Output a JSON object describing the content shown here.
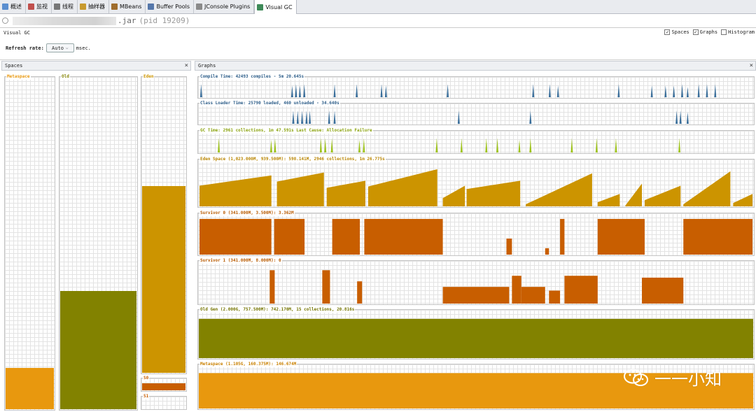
{
  "tabs": [
    {
      "label": "概述",
      "icon": "overview-icon",
      "color": "#5b8fd0"
    },
    {
      "label": "监视",
      "icon": "monitor-icon",
      "color": "#c0504d"
    },
    {
      "label": "线程",
      "icon": "threads-icon",
      "color": "#777777"
    },
    {
      "label": "抽样器",
      "icon": "sampler-icon",
      "color": "#c89a2e"
    },
    {
      "label": "MBeans",
      "icon": "mbeans-icon",
      "color": "#a06e2e"
    },
    {
      "label": "Buffer Pools",
      "icon": "buffer-pools-icon",
      "color": "#5577aa"
    },
    {
      "label": "JConsole Plugins",
      "icon": "jconsole-plugins-icon",
      "color": "#8a8a8a"
    },
    {
      "label": "Visual GC",
      "icon": "visual-gc-icon",
      "color": "#3e8a58"
    }
  ],
  "title": {
    "jar": ".jar",
    "pid": "(pid 19209)"
  },
  "visual_gc": {
    "label": "Visual GC",
    "options": [
      {
        "label": "Spaces",
        "checked": true
      },
      {
        "label": "Graphs",
        "checked": true
      },
      {
        "label": "Histogram",
        "checked": false
      }
    ],
    "refresh_label": "Refresh rate:",
    "refresh_value": "Auto",
    "refresh_unit": "msec."
  },
  "spaces_panel": {
    "title": "Spaces",
    "spaces": [
      {
        "name": "Metaspace",
        "fill": 0.125,
        "color": "#e8980e",
        "label_color": "#e8980e"
      },
      {
        "name": "Old",
        "fill": 0.355,
        "color": "#828200",
        "label_color": "#828200"
      },
      {
        "name": "Eden",
        "fill": 0.63,
        "color": "#cc9400",
        "label_color": "#cc9400"
      },
      {
        "name": "S0",
        "fill": 1.0,
        "color": "#c85e00",
        "label_color": "#c85e00"
      },
      {
        "name": "S1",
        "fill": 0.0,
        "color": "#c85e00",
        "label_color": "#c85e00"
      }
    ]
  },
  "graphs_panel": {
    "title": "Graphs",
    "graphs": [
      {
        "title": "Compile Time: 42493 compiles - 5m 20.645s",
        "color": "#3a6e9a",
        "label_color": "#2f5f8a",
        "spikes": [
          0.003,
          0.168,
          0.175,
          0.182,
          0.19,
          0.245,
          0.285,
          0.33,
          0.338,
          0.45,
          0.605,
          0.635,
          0.65,
          0.76,
          0.82,
          0.845,
          0.86,
          0.875,
          0.885,
          0.905,
          0.92,
          0.935
        ],
        "spike_heights": [
          0.9,
          0.8,
          0.9,
          0.8,
          0.9,
          0.9,
          0.9,
          0.9,
          0.8,
          0.9,
          0.9,
          0.9,
          0.8,
          0.9,
          0.8,
          0.8,
          0.8,
          0.9,
          0.7,
          0.9,
          0.9,
          0.9
        ]
      },
      {
        "title": "Class Loader Time: 25790 loaded, 460 unloaded - 34.640s",
        "color": "#3a6e9a",
        "label_color": "#2f5f8a",
        "spikes": [
          0.17,
          0.178,
          0.186,
          0.194,
          0.2,
          0.235,
          0.245,
          0.47,
          0.6,
          0.865,
          0.872,
          0.885
        ],
        "spike_heights": [
          0.9,
          0.9,
          0.9,
          0.9,
          0.9,
          0.9,
          0.9,
          0.9,
          0.9,
          0.9,
          0.9,
          0.8
        ]
      },
      {
        "title": "GC Time: 2961 collections, 1m 47.591s  Last Cause: Allocation Failure",
        "color": "#9dc21a",
        "label_color": "#8aa20e",
        "spikes": [
          0.035,
          0.13,
          0.137,
          0.22,
          0.228,
          0.24,
          0.29,
          0.298,
          0.43,
          0.475,
          0.52,
          0.54,
          0.58,
          0.6,
          0.675,
          0.72,
          0.755,
          0.87
        ],
        "spike_heights": [
          0.9,
          0.8,
          0.9,
          0.9,
          0.9,
          0.9,
          0.8,
          0.9,
          0.9,
          0.9,
          0.9,
          0.9,
          0.8,
          0.9,
          0.9,
          0.9,
          0.9,
          0.9
        ]
      },
      {
        "title": "Eden Space (1,023.000M, 939.500M): 598.141M, 2946 collections, 1m 26.775s",
        "color": "#cc9400",
        "label_color": "#b88400"
      },
      {
        "title": "Survivor 0 (341.000M, 3.500M): 3.362M",
        "color": "#c85e00",
        "label_color": "#b85a00"
      },
      {
        "title": "Survivor 1 (341.000M, 8.000M): 0",
        "color": "#c85e00",
        "label_color": "#b85a00"
      },
      {
        "title": "Old Gen (2.000G, 757.500M): 742.170M, 15 collections, 20.816s",
        "color": "#828200",
        "label_color": "#747400"
      },
      {
        "title": "Metaspace (1.105G, 160.375M): 146.674M",
        "color": "#e8980e",
        "label_color": "#c98000"
      }
    ]
  },
  "watermark": {
    "text": "一一小知"
  }
}
